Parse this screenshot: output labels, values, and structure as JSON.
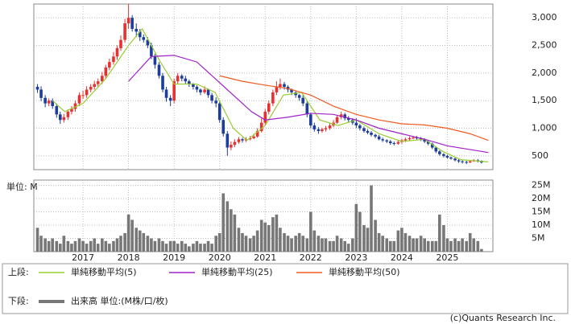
{
  "chart_data": {
    "type": "candlestick",
    "x": [
      2016,
      2016.08,
      2016.17,
      2016.25,
      2016.33,
      2016.42,
      2016.5,
      2016.58,
      2016.67,
      2016.75,
      2016.83,
      2016.92,
      2017,
      2017.08,
      2017.17,
      2017.25,
      2017.33,
      2017.42,
      2017.5,
      2017.58,
      2017.67,
      2017.75,
      2017.83,
      2017.92,
      2018,
      2018.08,
      2018.17,
      2018.25,
      2018.33,
      2018.42,
      2018.5,
      2018.58,
      2018.67,
      2018.75,
      2018.83,
      2018.92,
      2019,
      2019.08,
      2019.17,
      2019.25,
      2019.33,
      2019.42,
      2019.5,
      2019.58,
      2019.67,
      2019.75,
      2019.83,
      2019.92,
      2020,
      2020.08,
      2020.17,
      2020.25,
      2020.33,
      2020.42,
      2020.5,
      2020.58,
      2020.67,
      2020.75,
      2020.83,
      2020.92,
      2021,
      2021.08,
      2021.17,
      2021.25,
      2021.33,
      2021.42,
      2021.5,
      2021.58,
      2021.67,
      2021.75,
      2021.83,
      2021.92,
      2022,
      2022.08,
      2022.17,
      2022.25,
      2022.33,
      2022.42,
      2022.5,
      2022.58,
      2022.67,
      2022.75,
      2022.83,
      2022.92,
      2023,
      2023.08,
      2023.17,
      2023.25,
      2023.33,
      2023.42,
      2023.5,
      2023.58,
      2023.67,
      2023.75,
      2023.83,
      2023.92,
      2024,
      2024.08,
      2024.17,
      2024.25,
      2024.33,
      2024.42,
      2024.5,
      2024.58,
      2024.67,
      2024.75,
      2024.83,
      2024.92,
      2025,
      2025.08,
      2025.17,
      2025.25,
      2025.33,
      2025.42,
      2025.5,
      2025.58,
      2025.67,
      2025.75
    ],
    "open": [
      1750,
      1700,
      1550,
      1450,
      1500,
      1400,
      1250,
      1150,
      1200,
      1300,
      1350,
      1450,
      1600,
      1600,
      1700,
      1750,
      1800,
      1850,
      1950,
      2100,
      2200,
      2300,
      2450,
      2600,
      2900,
      3000,
      2800,
      2750,
      2650,
      2600,
      2500,
      2300,
      2150,
      1950,
      1700,
      1550,
      1500,
      1850,
      1950,
      1900,
      1850,
      1800,
      1750,
      1700,
      1650,
      1700,
      1600,
      1500,
      1450,
      1150,
      900,
      650,
      700,
      750,
      800,
      780,
      800,
      820,
      850,
      950,
      1100,
      1300,
      1450,
      1650,
      1750,
      1800,
      1750,
      1700,
      1650,
      1600,
      1550,
      1450,
      1250,
      1050,
      980,
      950,
      980,
      1000,
      1050,
      1100,
      1200,
      1250,
      1180,
      1150,
      1100,
      1050,
      1000,
      950,
      920,
      880,
      850,
      800,
      780,
      760,
      730,
      720,
      750,
      780,
      800,
      820,
      830,
      820,
      800,
      760,
      720,
      650,
      580,
      530,
      500,
      470,
      450,
      420,
      400,
      390,
      380,
      400,
      420,
      410
    ],
    "high": [
      1800,
      1760,
      1600,
      1540,
      1540,
      1450,
      1300,
      1260,
      1340,
      1400,
      1500,
      1650,
      1680,
      1760,
      1800,
      1860,
      1900,
      2020,
      2150,
      2260,
      2380,
      2500,
      2680,
      2980,
      3250,
      3050,
      2900,
      2800,
      2700,
      2650,
      2550,
      2350,
      2200,
      2000,
      1750,
      1600,
      1900,
      2000,
      1980,
      1950,
      1880,
      1820,
      1780,
      1720,
      1760,
      1720,
      1640,
      1560,
      1500,
      1200,
      950,
      760,
      800,
      840,
      830,
      840,
      860,
      900,
      1000,
      1180,
      1350,
      1500,
      1700,
      1850,
      1900,
      1840,
      1780,
      1720,
      1680,
      1620,
      1600,
      1500,
      1280,
      1100,
      1020,
      1010,
      1040,
      1090,
      1150,
      1240,
      1300,
      1280,
      1220,
      1180,
      1180,
      1080,
      1030,
      980,
      950,
      900,
      880,
      830,
      800,
      790,
      760,
      780,
      810,
      830,
      850,
      860,
      860,
      840,
      820,
      780,
      740,
      670,
      600,
      550,
      520,
      490,
      470,
      440,
      420,
      410,
      420,
      440,
      440,
      420
    ],
    "low": [
      1640,
      1490,
      1380,
      1400,
      1350,
      1190,
      1080,
      1100,
      1150,
      1250,
      1300,
      1400,
      1530,
      1550,
      1650,
      1700,
      1740,
      1800,
      1900,
      2050,
      2150,
      2240,
      2400,
      2550,
      2800,
      2750,
      2650,
      2580,
      2550,
      2450,
      2250,
      2080,
      1900,
      1650,
      1480,
      1400,
      1450,
      1800,
      1850,
      1800,
      1750,
      1700,
      1650,
      1600,
      1620,
      1550,
      1450,
      1380,
      1100,
      850,
      500,
      600,
      660,
      720,
      740,
      750,
      780,
      800,
      830,
      920,
      1060,
      1250,
      1400,
      1600,
      1700,
      1700,
      1650,
      1600,
      1550,
      1500,
      1400,
      1200,
      1000,
      940,
      900,
      920,
      940,
      970,
      1020,
      1080,
      1160,
      1140,
      1100,
      1060,
      1000,
      960,
      920,
      890,
      850,
      820,
      780,
      750,
      730,
      700,
      690,
      700,
      720,
      750,
      780,
      800,
      790,
      770,
      730,
      690,
      620,
      550,
      500,
      470,
      450,
      430,
      400,
      370,
      360,
      350,
      370,
      390,
      380,
      360
    ],
    "close": [
      1700,
      1550,
      1450,
      1500,
      1400,
      1250,
      1150,
      1200,
      1300,
      1350,
      1450,
      1600,
      1600,
      1700,
      1750,
      1800,
      1850,
      1950,
      2100,
      2200,
      2300,
      2450,
      2600,
      2900,
      3000,
      2800,
      2750,
      2650,
      2600,
      2500,
      2300,
      2150,
      1950,
      1700,
      1550,
      1500,
      1850,
      1950,
      1900,
      1850,
      1800,
      1750,
      1700,
      1650,
      1700,
      1600,
      1500,
      1450,
      1150,
      900,
      650,
      700,
      750,
      800,
      780,
      800,
      820,
      850,
      950,
      1100,
      1300,
      1450,
      1650,
      1750,
      1800,
      1750,
      1700,
      1650,
      1600,
      1550,
      1450,
      1250,
      1050,
      980,
      950,
      980,
      1000,
      1050,
      1100,
      1200,
      1250,
      1180,
      1150,
      1100,
      1050,
      1000,
      950,
      920,
      880,
      850,
      800,
      780,
      760,
      730,
      720,
      750,
      780,
      800,
      820,
      830,
      820,
      800,
      760,
      720,
      650,
      580,
      530,
      500,
      470,
      450,
      420,
      400,
      390,
      380,
      400,
      420,
      410,
      380
    ],
    "up_color": "#e8312f",
    "down_color": "#1c3d9c",
    "xlim": [
      2015.92,
      2026
    ],
    "xticks": [
      2017,
      2018,
      2019,
      2020,
      2021,
      2022,
      2023,
      2024,
      2025
    ],
    "ylim": [
      250,
      3250
    ],
    "yticks": [
      {
        "value": 500,
        "label": "500"
      },
      {
        "value": 1000,
        "label": "1,000"
      },
      {
        "value": 1500,
        "label": "1,500"
      },
      {
        "value": 2000,
        "label": "2,000"
      },
      {
        "value": 2500,
        "label": "2,500"
      },
      {
        "value": 3000,
        "label": "3,000"
      }
    ],
    "grid": true,
    "upper_label": "上段:",
    "lower_label": "下段:",
    "moving_averages": [
      {
        "name": "単純移動平均(5)",
        "color": "#9acd32",
        "x": [
          2016.33,
          2016.6,
          2017,
          2017.5,
          2018,
          2018.3,
          2018.7,
          2019,
          2019.5,
          2019.9,
          2020.3,
          2020.6,
          2021,
          2021.4,
          2021.8,
          2022.2,
          2022.6,
          2023,
          2023.5,
          2024,
          2024.5,
          2024.9,
          2025.3,
          2025.9
        ],
        "values": [
          1500,
          1300,
          1450,
          1900,
          2500,
          2800,
          2200,
          1800,
          1800,
          1650,
          1000,
          780,
          1050,
          1600,
          1650,
          1150,
          1050,
          1150,
          900,
          760,
          800,
          580,
          430,
          390
        ]
      },
      {
        "name": "単純移動平均(25)",
        "color": "#a020c8",
        "x": [
          2018,
          2018.5,
          2019,
          2019.5,
          2019.9,
          2020.3,
          2020.7,
          2021,
          2021.5,
          2022,
          2022.5,
          2023,
          2023.5,
          2024,
          2024.5,
          2025,
          2025.9
        ],
        "values": [
          1850,
          2300,
          2320,
          2200,
          1900,
          1600,
          1300,
          1150,
          1200,
          1270,
          1250,
          1150,
          1000,
          900,
          800,
          680,
          560
        ]
      },
      {
        "name": "単純移動平均(50)",
        "color": "#f05a1e",
        "x": [
          2020,
          2020.5,
          2021,
          2021.5,
          2022,
          2022.5,
          2023,
          2023.5,
          2024,
          2024.5,
          2025,
          2025.5,
          2025.9
        ],
        "values": [
          1950,
          1850,
          1780,
          1720,
          1600,
          1400,
          1250,
          1150,
          1080,
          1060,
          1000,
          900,
          780
        ]
      }
    ],
    "volume": {
      "name": "出来高 単位:(M株/口/枚)",
      "unit": "単位: M",
      "color": "#777777",
      "values": [
        9,
        6,
        5,
        4,
        5,
        4,
        3,
        6,
        4,
        3,
        4,
        5,
        4,
        3,
        4,
        5,
        3,
        5,
        4,
        3,
        4,
        5,
        6,
        7,
        14,
        12,
        9,
        8,
        7,
        6,
        5,
        4,
        5,
        4,
        3,
        4,
        4,
        3,
        4,
        3,
        2,
        3,
        4,
        3,
        3,
        4,
        3,
        6,
        7,
        22,
        19,
        16,
        14,
        9,
        7,
        6,
        5,
        6,
        8,
        12,
        11,
        10,
        13,
        14,
        9,
        7,
        6,
        5,
        6,
        7,
        6,
        5,
        15,
        8,
        6,
        5,
        5,
        4,
        4,
        6,
        5,
        4,
        3,
        5,
        18,
        15,
        10,
        9,
        25,
        12,
        7,
        6,
        5,
        4,
        4,
        8,
        9,
        7,
        6,
        5,
        5,
        6,
        5,
        4,
        4,
        4,
        14,
        10,
        5,
        4,
        5,
        4,
        5,
        4,
        7,
        5,
        4,
        1
      ],
      "ylim": [
        0,
        27
      ],
      "yticks": [
        {
          "value": 5,
          "label": "5M"
        },
        {
          "value": 10,
          "label": "10M"
        },
        {
          "value": 15,
          "label": "15M"
        },
        {
          "value": 20,
          "label": "20M"
        },
        {
          "value": 25,
          "label": "25M"
        }
      ]
    },
    "copyright": "(c)Quants Research Inc."
  }
}
